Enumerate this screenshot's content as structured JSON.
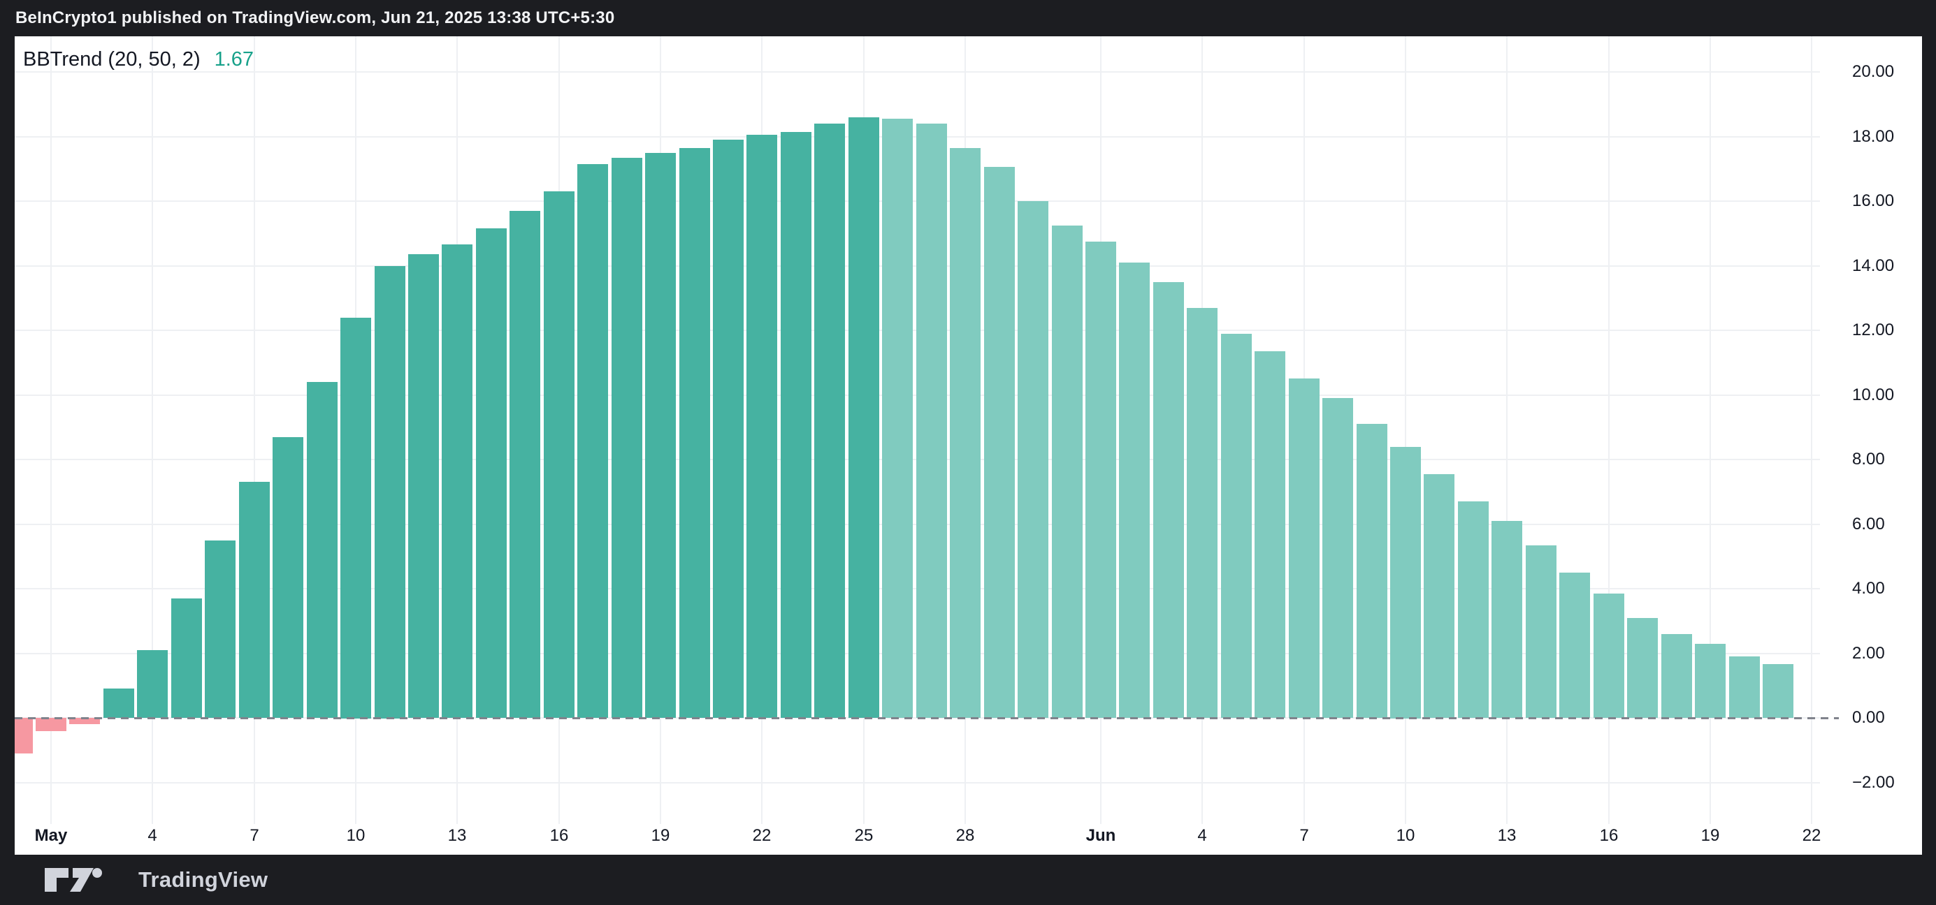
{
  "header": {
    "attribution": "BeInCrypto1 published on TradingView.com, Jun 21, 2025 13:38 UTC+5:30"
  },
  "footer": {
    "brand": "TradingView"
  },
  "legend": {
    "indicator": "BBTrend (20, 50, 2)",
    "value": "1.67"
  },
  "colors": {
    "frame_bg": "#1c1d21",
    "panel_bg": "#ffffff",
    "header_text": "#f2f3f5",
    "footer_text": "#d1d4dc",
    "grid": "#eef0f3",
    "zero_line": "#80838c",
    "axis_text": "#131722",
    "legend_value": "#17a18a",
    "bar_positive": "#46b2a1",
    "bar_faded": "#80cbbf",
    "bar_negative": "#f698a1"
  },
  "chart_data": {
    "type": "bar",
    "title": "BBTrend (20, 50, 2)",
    "current_value": 1.67,
    "ylabel": "",
    "xlabel": "",
    "ylim": [
      -4.2,
      21.1
    ],
    "grid": true,
    "zero_line": "dashed",
    "legend_position": "top-left",
    "y_ticks": [
      {
        "label": "20.00",
        "v": 20
      },
      {
        "label": "18.00",
        "v": 18
      },
      {
        "label": "16.00",
        "v": 16
      },
      {
        "label": "14.00",
        "v": 14
      },
      {
        "label": "12.00",
        "v": 12
      },
      {
        "label": "10.00",
        "v": 10
      },
      {
        "label": "8.00",
        "v": 8
      },
      {
        "label": "6.00",
        "v": 6
      },
      {
        "label": "4.00",
        "v": 4
      },
      {
        "label": "2.00",
        "v": 2
      },
      {
        "label": "0.00",
        "v": 0
      },
      {
        "label": "−2.00",
        "v": -2
      }
    ],
    "x_ticks": [
      {
        "label": "May",
        "d": 0,
        "bold": true
      },
      {
        "label": "4",
        "d": 3
      },
      {
        "label": "7",
        "d": 6
      },
      {
        "label": "10",
        "d": 9
      },
      {
        "label": "13",
        "d": 12
      },
      {
        "label": "16",
        "d": 15
      },
      {
        "label": "19",
        "d": 18
      },
      {
        "label": "22",
        "d": 21
      },
      {
        "label": "25",
        "d": 24
      },
      {
        "label": "28",
        "d": 27
      },
      {
        "label": "Jun",
        "d": 31,
        "bold": true
      },
      {
        "label": "4",
        "d": 34
      },
      {
        "label": "7",
        "d": 37
      },
      {
        "label": "10",
        "d": 40
      },
      {
        "label": "13",
        "d": 43
      },
      {
        "label": "16",
        "d": 46
      },
      {
        "label": "19",
        "d": 49
      },
      {
        "label": "22",
        "d": 52
      }
    ],
    "points": [
      {
        "date": "Apr 30",
        "d": -1,
        "value": -1.1,
        "style": "neg"
      },
      {
        "date": "May 1",
        "d": 0,
        "value": -0.4,
        "style": "neg"
      },
      {
        "date": "May 2",
        "d": 1,
        "value": -0.2,
        "style": "neg"
      },
      {
        "date": "May 3",
        "d": 2,
        "value": 0.9,
        "style": "solid"
      },
      {
        "date": "May 4",
        "d": 3,
        "value": 2.1,
        "style": "solid"
      },
      {
        "date": "May 5",
        "d": 4,
        "value": 3.7,
        "style": "solid"
      },
      {
        "date": "May 6",
        "d": 5,
        "value": 5.5,
        "style": "solid"
      },
      {
        "date": "May 7",
        "d": 6,
        "value": 7.3,
        "style": "solid"
      },
      {
        "date": "May 8",
        "d": 7,
        "value": 8.7,
        "style": "solid"
      },
      {
        "date": "May 9",
        "d": 8,
        "value": 10.4,
        "style": "solid"
      },
      {
        "date": "May 10",
        "d": 9,
        "value": 12.4,
        "style": "solid"
      },
      {
        "date": "May 11",
        "d": 10,
        "value": 14.0,
        "style": "solid"
      },
      {
        "date": "May 12",
        "d": 11,
        "value": 14.35,
        "style": "solid"
      },
      {
        "date": "May 13",
        "d": 12,
        "value": 14.65,
        "style": "solid"
      },
      {
        "date": "May 14",
        "d": 13,
        "value": 15.15,
        "style": "solid"
      },
      {
        "date": "May 15",
        "d": 14,
        "value": 15.7,
        "style": "solid"
      },
      {
        "date": "May 16",
        "d": 15,
        "value": 16.3,
        "style": "solid"
      },
      {
        "date": "May 17",
        "d": 16,
        "value": 17.15,
        "style": "solid"
      },
      {
        "date": "May 18",
        "d": 17,
        "value": 17.35,
        "style": "solid"
      },
      {
        "date": "May 19",
        "d": 18,
        "value": 17.5,
        "style": "solid"
      },
      {
        "date": "May 20",
        "d": 19,
        "value": 17.65,
        "style": "solid"
      },
      {
        "date": "May 21",
        "d": 20,
        "value": 17.9,
        "style": "solid"
      },
      {
        "date": "May 22",
        "d": 21,
        "value": 18.05,
        "style": "solid"
      },
      {
        "date": "May 23",
        "d": 22,
        "value": 18.15,
        "style": "solid"
      },
      {
        "date": "May 24",
        "d": 23,
        "value": 18.4,
        "style": "solid"
      },
      {
        "date": "May 25",
        "d": 24,
        "value": 18.6,
        "style": "solid"
      },
      {
        "date": "May 26",
        "d": 25,
        "value": 18.55,
        "style": "faded"
      },
      {
        "date": "May 27",
        "d": 26,
        "value": 18.4,
        "style": "faded"
      },
      {
        "date": "May 28",
        "d": 27,
        "value": 17.65,
        "style": "faded"
      },
      {
        "date": "May 29",
        "d": 28,
        "value": 17.05,
        "style": "faded"
      },
      {
        "date": "May 30",
        "d": 29,
        "value": 16.0,
        "style": "faded"
      },
      {
        "date": "May 31",
        "d": 30,
        "value": 15.25,
        "style": "faded"
      },
      {
        "date": "Jun 1",
        "d": 31,
        "value": 14.75,
        "style": "faded"
      },
      {
        "date": "Jun 2",
        "d": 32,
        "value": 14.1,
        "style": "faded"
      },
      {
        "date": "Jun 3",
        "d": 33,
        "value": 13.5,
        "style": "faded"
      },
      {
        "date": "Jun 4",
        "d": 34,
        "value": 12.7,
        "style": "faded"
      },
      {
        "date": "Jun 5",
        "d": 35,
        "value": 11.9,
        "style": "faded"
      },
      {
        "date": "Jun 6",
        "d": 36,
        "value": 11.35,
        "style": "faded"
      },
      {
        "date": "Jun 7",
        "d": 37,
        "value": 10.5,
        "style": "faded"
      },
      {
        "date": "Jun 8",
        "d": 38,
        "value": 9.9,
        "style": "faded"
      },
      {
        "date": "Jun 9",
        "d": 39,
        "value": 9.1,
        "style": "faded"
      },
      {
        "date": "Jun 10",
        "d": 40,
        "value": 8.4,
        "style": "faded"
      },
      {
        "date": "Jun 11",
        "d": 41,
        "value": 7.55,
        "style": "faded"
      },
      {
        "date": "Jun 12",
        "d": 42,
        "value": 6.7,
        "style": "faded"
      },
      {
        "date": "Jun 13",
        "d": 43,
        "value": 6.1,
        "style": "faded"
      },
      {
        "date": "Jun 14",
        "d": 44,
        "value": 5.35,
        "style": "faded"
      },
      {
        "date": "Jun 15",
        "d": 45,
        "value": 4.5,
        "style": "faded"
      },
      {
        "date": "Jun 16",
        "d": 46,
        "value": 3.85,
        "style": "faded"
      },
      {
        "date": "Jun 17",
        "d": 47,
        "value": 3.1,
        "style": "faded"
      },
      {
        "date": "Jun 18",
        "d": 48,
        "value": 2.6,
        "style": "faded"
      },
      {
        "date": "Jun 19",
        "d": 49,
        "value": 2.3,
        "style": "faded"
      },
      {
        "date": "Jun 20",
        "d": 50,
        "value": 1.9,
        "style": "faded"
      },
      {
        "date": "Jun 21",
        "d": 51,
        "value": 1.67,
        "style": "faded"
      }
    ]
  }
}
